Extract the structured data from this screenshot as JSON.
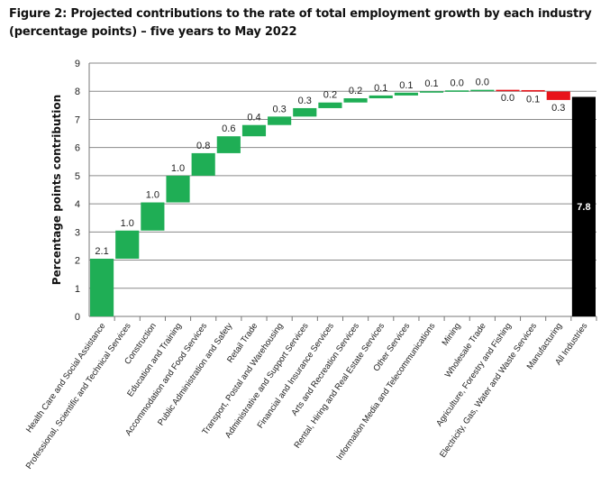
{
  "chart_data": {
    "type": "waterfall",
    "title": "Figure 2: Projected contributions to the rate of total employment growth by each industry (percentage points) – five years to May 2022",
    "ylabel": "Percentage points contribution",
    "xlabel": "",
    "ylim": [
      0,
      9
    ],
    "yticks": [
      "0",
      "1",
      "2",
      "3",
      "4",
      "5",
      "6",
      "7",
      "8",
      "9"
    ],
    "grid": true,
    "categories": [
      "Health Care and Social Assistance",
      "Professional, Scientific and Technical Services",
      "Construction",
      "Education and Training",
      "Accommodation and Food Services",
      "Public Administration and Safety",
      "Retail Trade",
      "Transport, Postal and Warehousing",
      "Administrative and Support Services",
      "Financial and Insurance Services",
      "Arts and Recreation Services",
      "Rental, Hiring and Real Estate Services",
      "Other Services",
      "Information Media and Telecommunications",
      "Mining",
      "Wholesale Trade",
      "Agriculture, Forestry and Fishing",
      "Electricity, Gas, Water and Waste Services",
      "Manufacturing",
      "All Industries"
    ],
    "values": [
      2.05,
      1.0,
      1.0,
      0.95,
      0.8,
      0.6,
      0.4,
      0.3,
      0.3,
      0.2,
      0.15,
      0.1,
      0.1,
      0.05,
      0.03,
      0.02,
      -0.01,
      -0.05,
      -0.3,
      7.8
    ],
    "labels": [
      "2.1",
      "1.0",
      "1.0",
      "1.0",
      "0.8",
      "0.6",
      "0.4",
      "0.3",
      "0.3",
      "0.2",
      "0.2",
      "0.1",
      "0.1",
      "0.1",
      "0.0",
      "0.0",
      "0.0",
      "0.1",
      "0.3",
      "7.8"
    ],
    "colors": {
      "increase": "#1fae55",
      "decrease": "#e8141b",
      "total": "#000000"
    }
  }
}
